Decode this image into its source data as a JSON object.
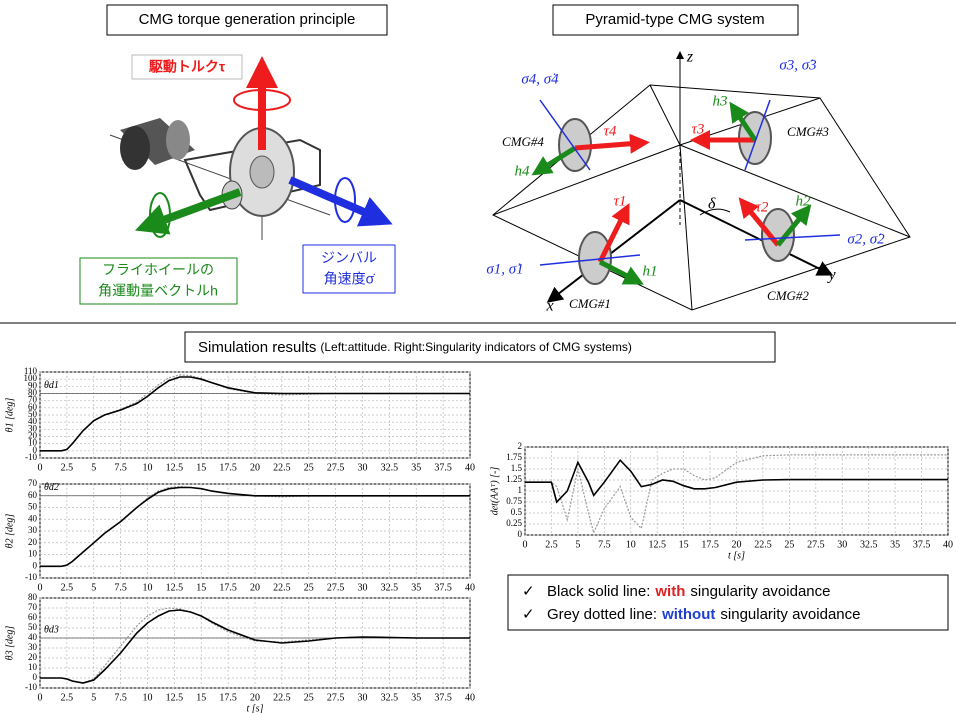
{
  "top_left": {
    "title": "CMG torque generation principle",
    "torque_label": "駆動トルクτ",
    "wheel_label_1": "フライホイールの",
    "wheel_label_2": "角運動量ベクトルh",
    "gimbal_label_1": "ジンバル",
    "gimbal_label_2": "角速度σ̇"
  },
  "top_right": {
    "title": "Pyramid-type CMG system",
    "axes": {
      "x": "x",
      "y": "y",
      "z": "z"
    },
    "delta": "δ",
    "cmgs": [
      {
        "name": "CMG#1",
        "tau": "τ1",
        "h": "h1",
        "sigma": "σ1, σ̇1"
      },
      {
        "name": "CMG#2",
        "tau": "τ2",
        "h": "h2",
        "sigma": "σ2, σ̇2"
      },
      {
        "name": "CMG#3",
        "tau": "τ3",
        "h": "h3",
        "sigma": "σ3, σ̇3"
      },
      {
        "name": "CMG#4",
        "tau": "τ4",
        "h": "h4",
        "sigma": "σ4, σ̇4"
      }
    ]
  },
  "simulation": {
    "title": "Simulation results",
    "subtitle": "(Left:attitude.  Right:Singularity  indicators of CMG systems)"
  },
  "legend": {
    "check": "✓",
    "line1_prefix": "Black solid line:",
    "line1_suffix": "singularity avoidance",
    "line2_prefix": "Grey dotted line:",
    "line2_suffix": "singularity avoidance"
  },
  "chart_data": [
    {
      "type": "line",
      "ylabel": "θ1 [deg]",
      "grid": true,
      "x": [
        0,
        2,
        2.5,
        3,
        4,
        5,
        6,
        7.5,
        9,
        10,
        11,
        12,
        13,
        14,
        15,
        16,
        17.5,
        20,
        22.5,
        25,
        27.5,
        30,
        35,
        40
      ],
      "xlim": [
        0,
        40
      ],
      "xticks": [
        0,
        2.5,
        5,
        7.5,
        10,
        12.5,
        15,
        17.5,
        20,
        22.5,
        25,
        27.5,
        30,
        32.5,
        35,
        37.5,
        40
      ],
      "ylim": [
        -10,
        110
      ],
      "yticks": [
        -10,
        0,
        10,
        20,
        30,
        40,
        50,
        60,
        70,
        80,
        90,
        100,
        110
      ],
      "reference_line": {
        "value": 80,
        "label": "θd1"
      },
      "series": [
        {
          "name": "with",
          "color": "#000000",
          "line_style": "solid",
          "values": [
            0,
            0,
            2,
            10,
            28,
            42,
            50,
            57,
            66,
            76,
            88,
            98,
            103,
            103,
            100,
            95,
            88,
            81,
            80,
            80,
            80,
            80,
            80,
            80
          ]
        },
        {
          "name": "without",
          "color": "#9a9a9a",
          "line_style": "dotted",
          "values": [
            0,
            0,
            2,
            10,
            28,
            42,
            50,
            58,
            68,
            80,
            92,
            102,
            106,
            105,
            101,
            95,
            87,
            80,
            78,
            79,
            80,
            80,
            80,
            80
          ]
        }
      ]
    },
    {
      "type": "line",
      "ylabel": "θ2 [deg]",
      "grid": true,
      "x": [
        0,
        2,
        2.5,
        3,
        4,
        5,
        6,
        7.5,
        9,
        10,
        11,
        12,
        13,
        14,
        15,
        16,
        17.5,
        20,
        22.5,
        25,
        27.5,
        30,
        35,
        40
      ],
      "xlim": [
        0,
        40
      ],
      "xticks": [
        0,
        2.5,
        5,
        7.5,
        10,
        12.5,
        15,
        17.5,
        20,
        22.5,
        25,
        27.5,
        30,
        32.5,
        35,
        37.5,
        40
      ],
      "ylim": [
        -10,
        70
      ],
      "yticks": [
        -10,
        0,
        10,
        20,
        30,
        40,
        50,
        60,
        70
      ],
      "reference_line": {
        "value": 60,
        "label": "θd2"
      },
      "series": [
        {
          "name": "with",
          "color": "#000000",
          "line_style": "solid",
          "values": [
            0,
            0,
            1,
            4,
            12,
            20,
            28,
            38,
            50,
            57,
            63,
            66,
            67,
            67,
            66,
            64,
            62,
            60,
            60,
            60,
            60,
            60,
            60,
            60
          ]
        },
        {
          "name": "without",
          "color": "#9a9a9a",
          "line_style": "dotted",
          "values": [
            0,
            0,
            1,
            4,
            12,
            20,
            28,
            38,
            50,
            58,
            64,
            67,
            68,
            67,
            66,
            64,
            62,
            60,
            59,
            60,
            60,
            60,
            60,
            60
          ]
        }
      ]
    },
    {
      "type": "line",
      "ylabel": "θ3 [deg]",
      "xlabel": "t [s]",
      "grid": true,
      "x": [
        0,
        2,
        2.5,
        3,
        4,
        5,
        6,
        7.5,
        9,
        10,
        11,
        12,
        13,
        14,
        15,
        16,
        17.5,
        20,
        22.5,
        25,
        27.5,
        30,
        35,
        40
      ],
      "xlim": [
        0,
        40
      ],
      "xticks": [
        0,
        2.5,
        5,
        7.5,
        10,
        12.5,
        15,
        17.5,
        20,
        22.5,
        25,
        27.5,
        30,
        32.5,
        35,
        37.5,
        40
      ],
      "ylim": [
        -10,
        80
      ],
      "yticks": [
        -10,
        0,
        10,
        20,
        30,
        40,
        50,
        60,
        70,
        80
      ],
      "reference_line": {
        "value": 40,
        "label": "θd3"
      },
      "series": [
        {
          "name": "with",
          "color": "#000000",
          "line_style": "solid",
          "values": [
            0,
            0,
            -1,
            -3,
            -5,
            -2,
            8,
            25,
            45,
            55,
            62,
            67,
            68,
            66,
            62,
            56,
            48,
            38,
            35,
            37,
            40,
            41,
            40,
            40
          ]
        },
        {
          "name": "without",
          "color": "#9a9a9a",
          "line_style": "dotted",
          "values": [
            0,
            0,
            -1,
            -3,
            -5,
            -1,
            12,
            32,
            52,
            62,
            68,
            70,
            69,
            66,
            62,
            55,
            46,
            37,
            36,
            38,
            40,
            41,
            40,
            40
          ]
        }
      ]
    },
    {
      "type": "line",
      "ylabel": "det(AAᵀ) [-]",
      "xlabel": "t [s]",
      "grid": true,
      "x": [
        0,
        2.5,
        3,
        4,
        5,
        6,
        6.5,
        7.5,
        9,
        10,
        11,
        12,
        13,
        14,
        15,
        16,
        17,
        18,
        20,
        22.5,
        25,
        30,
        35,
        40
      ],
      "xlim": [
        0,
        40
      ],
      "xticks": [
        0,
        2.5,
        5,
        7.5,
        10,
        12.5,
        15,
        17.5,
        20,
        22.5,
        25,
        27.5,
        30,
        32.5,
        35,
        37.5,
        40
      ],
      "ylim": [
        0,
        2
      ],
      "yticks": [
        0,
        0.25,
        0.5,
        0.75,
        1,
        1.25,
        1.5,
        1.75,
        2
      ],
      "series": [
        {
          "name": "with",
          "color": "#000000",
          "line_style": "solid",
          "emphasis_color": "#e02020",
          "values": [
            1.2,
            1.2,
            0.75,
            1.0,
            1.65,
            1.2,
            0.9,
            1.2,
            1.7,
            1.45,
            1.1,
            1.15,
            1.25,
            1.22,
            1.12,
            1.05,
            1.05,
            1.08,
            1.2,
            1.25,
            1.26,
            1.26,
            1.26,
            1.26
          ]
        },
        {
          "name": "without",
          "color": "#9a9a9a",
          "line_style": "dotted",
          "emphasis_color": "#1f3fd0",
          "values": [
            1.2,
            1.2,
            1.1,
            0.35,
            1.5,
            0.5,
            0.05,
            0.6,
            1.1,
            0.4,
            0.15,
            1.25,
            1.4,
            1.5,
            1.5,
            1.35,
            1.25,
            1.3,
            1.65,
            1.8,
            1.82,
            1.82,
            1.82,
            1.82
          ]
        }
      ]
    }
  ]
}
